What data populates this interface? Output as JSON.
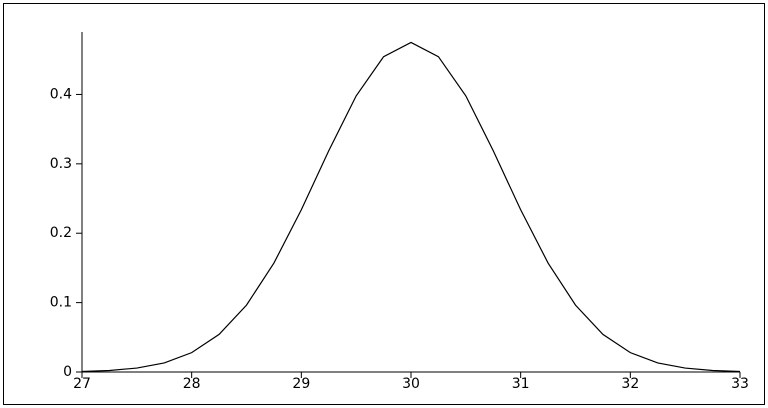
{
  "chart_data": {
    "type": "line",
    "x": [
      27,
      27.25,
      27.5,
      27.75,
      28,
      28.25,
      28.5,
      28.75,
      29,
      29.25,
      29.5,
      29.75,
      30,
      30.25,
      30.5,
      30.75,
      31,
      31.25,
      31.5,
      31.75,
      32,
      32.25,
      32.5,
      32.75,
      33
    ],
    "series": [
      {
        "color": "#000000",
        "values": [
          0.0008,
          0.0022,
          0.0057,
          0.0131,
          0.0279,
          0.0542,
          0.0964,
          0.157,
          0.2338,
          0.3189,
          0.3979,
          0.4544,
          0.475,
          0.4544,
          0.3979,
          0.3189,
          0.2338,
          0.157,
          0.0964,
          0.0542,
          0.0279,
          0.0131,
          0.0057,
          0.0022,
          0.0008
        ]
      }
    ],
    "xlim": [
      27,
      33
    ],
    "ylim": [
      0,
      0.49
    ],
    "xticks": [
      27,
      28,
      29,
      30,
      31,
      32,
      33
    ],
    "yticks": [
      0,
      0.1,
      0.2,
      0.3,
      0.4
    ]
  }
}
